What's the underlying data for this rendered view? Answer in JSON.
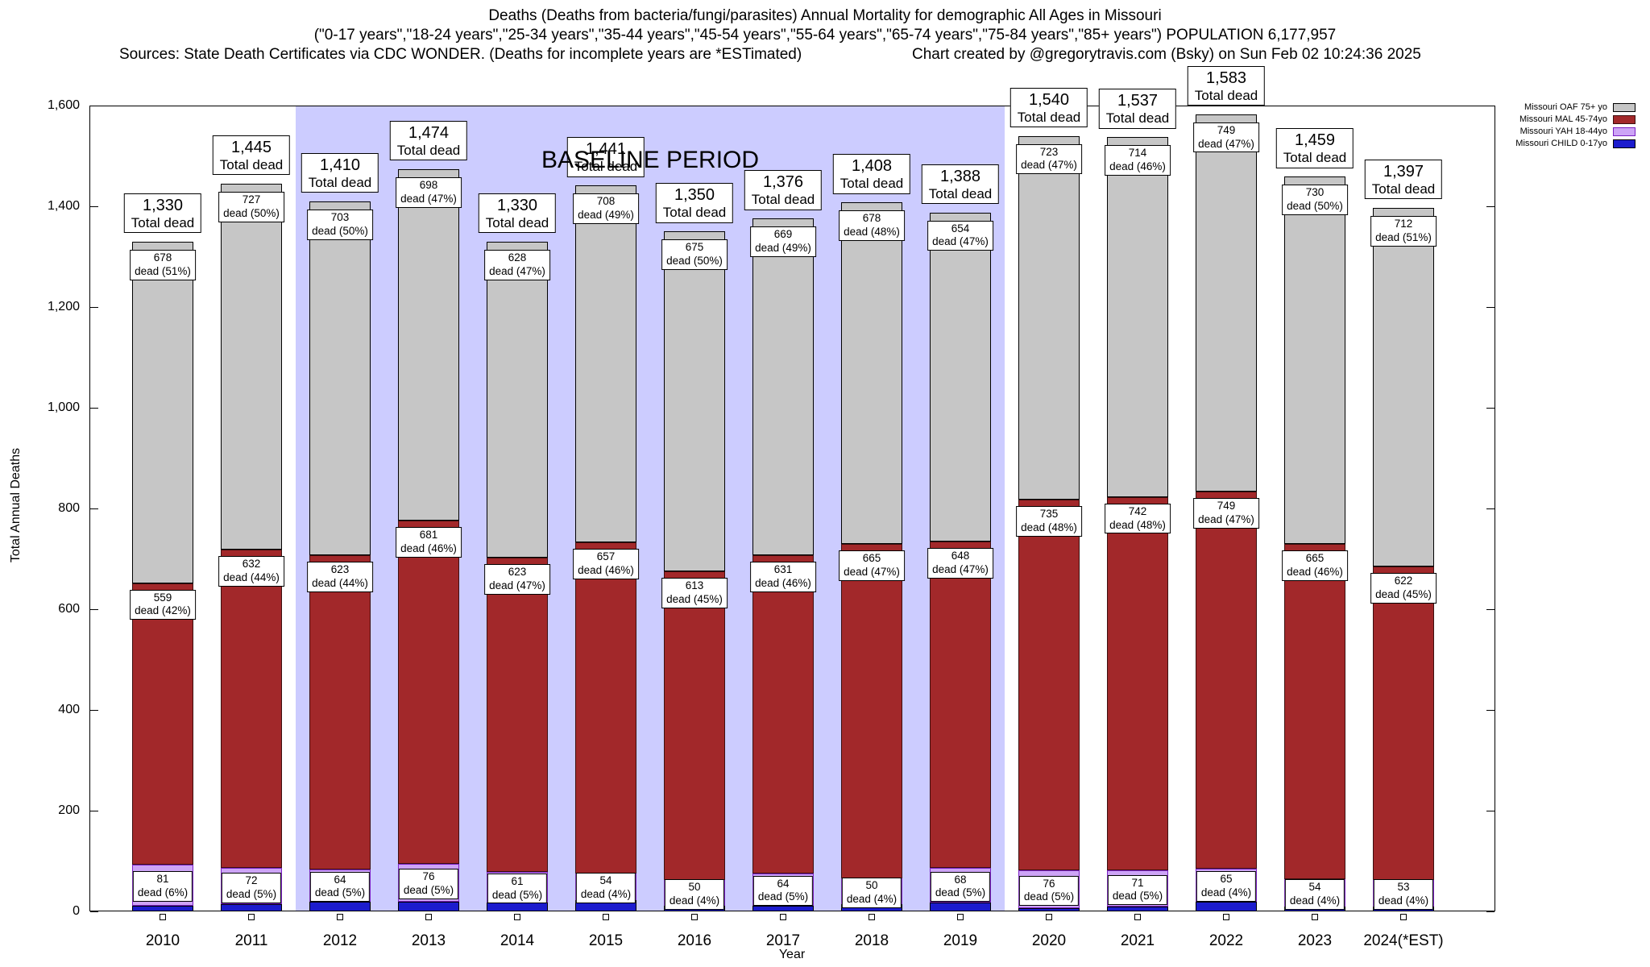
{
  "header": {
    "title_line1": "Deaths (Deaths from bacteria/fungi/parasites) Annual Mortality for demographic All Ages in Missouri",
    "title_line2": "(\"0-17 years\",\"18-24 years\",\"25-34 years\",\"35-44 years\",\"45-54 years\",\"55-64 years\",\"65-74 years\",\"75-84 years\",\"85+ years\") POPULATION 6,177,957",
    "sources": "Sources: State Death Certificates via CDC WONDER. (Deaths for incomplete years are *ESTimated)",
    "credit": "Chart created by @gregorytravis.com (Bsky) on Sun Feb 02 10:24:36 2025"
  },
  "chart_data": {
    "type": "bar",
    "stacked": true,
    "title": "Deaths (Deaths from bacteria/fungi/parasites) Annual Mortality for demographic All Ages in Missouri",
    "subtitle": "(\"0-17 years\",\"18-24 years\",\"25-34 years\",\"35-44 years\",\"45-54 years\",\"55-64 years\",\"65-74 years\",\"75-84 years\",\"85+ years\") POPULATION 6,177,957",
    "xlabel": "Year",
    "ylabel": "Total Annual Deaths",
    "ylim": [
      0,
      1600
    ],
    "yticks": [
      0,
      200,
      400,
      600,
      800,
      1000,
      1200,
      1400,
      1600
    ],
    "ytick_labels": [
      "0",
      "200",
      "400",
      "600",
      "800",
      "1,000",
      "1,200",
      "1,400",
      "1,600"
    ],
    "grid": false,
    "legend_position": "top-right",
    "categories": [
      "2010",
      "2011",
      "2012",
      "2013",
      "2014",
      "2015",
      "2016",
      "2017",
      "2018",
      "2019",
      "2020",
      "2021",
      "2022",
      "2023",
      "2024(*EST)"
    ],
    "baseline": {
      "label": "BASELINE PERIOD",
      "start_category": "2012",
      "end_category": "2019",
      "color": "#ccccff"
    },
    "series": [
      {
        "key": "child",
        "name": "Missouri CHILD 0-17yo",
        "color": "#1c1ccd",
        "border": "#000000",
        "values": [
          12,
          14,
          20,
          19,
          18,
          22,
          12,
          12,
          15,
          18,
          6,
          10,
          20,
          10,
          10
        ]
      },
      {
        "key": "yah",
        "name": "Missouri YAH 18-44yo",
        "color": "#cda4f6",
        "border": "#7a1fc4",
        "values": [
          81,
          72,
          64,
          76,
          61,
          54,
          50,
          64,
          50,
          68,
          76,
          71,
          65,
          54,
          53
        ],
        "pct": [
          "6%",
          "5%",
          "5%",
          "5%",
          "5%",
          "4%",
          "4%",
          "5%",
          "4%",
          "5%",
          "5%",
          "5%",
          "4%",
          "4%",
          "4%"
        ]
      },
      {
        "key": "mal",
        "name": "Missouri MAL 45-74yo",
        "color": "#a2282a",
        "border": "#3d0f0f",
        "values": [
          559,
          632,
          623,
          681,
          623,
          657,
          613,
          631,
          665,
          648,
          735,
          742,
          749,
          665,
          622
        ],
        "pct": [
          "42%",
          "44%",
          "44%",
          "46%",
          "47%",
          "46%",
          "45%",
          "46%",
          "47%",
          "47%",
          "48%",
          "48%",
          "47%",
          "46%",
          "45%"
        ]
      },
      {
        "key": "oaf",
        "name": "Missouri OAF 75+ yo",
        "color": "#c6c6c6",
        "border": "#000000",
        "values": [
          678,
          727,
          703,
          698,
          628,
          708,
          675,
          669,
          678,
          654,
          723,
          714,
          749,
          730,
          712
        ],
        "pct": [
          "51%",
          "50%",
          "50%",
          "47%",
          "47%",
          "49%",
          "50%",
          "49%",
          "48%",
          "47%",
          "47%",
          "46%",
          "47%",
          "50%",
          "51%"
        ]
      }
    ],
    "totals": [
      1330,
      1445,
      1410,
      1474,
      1330,
      1441,
      1350,
      1376,
      1408,
      1388,
      1540,
      1537,
      1583,
      1459,
      1397
    ],
    "totals_display": [
      "1,330",
      "1,445",
      "1,410",
      "1,474",
      "1,330",
      "1,441",
      "1,350",
      "1,376",
      "1,408",
      "1,388",
      "1,540",
      "1,537",
      "1,583",
      "1,459",
      "1,397"
    ],
    "total_label_suffix": "Total dead",
    "segment_label_word": "dead"
  }
}
